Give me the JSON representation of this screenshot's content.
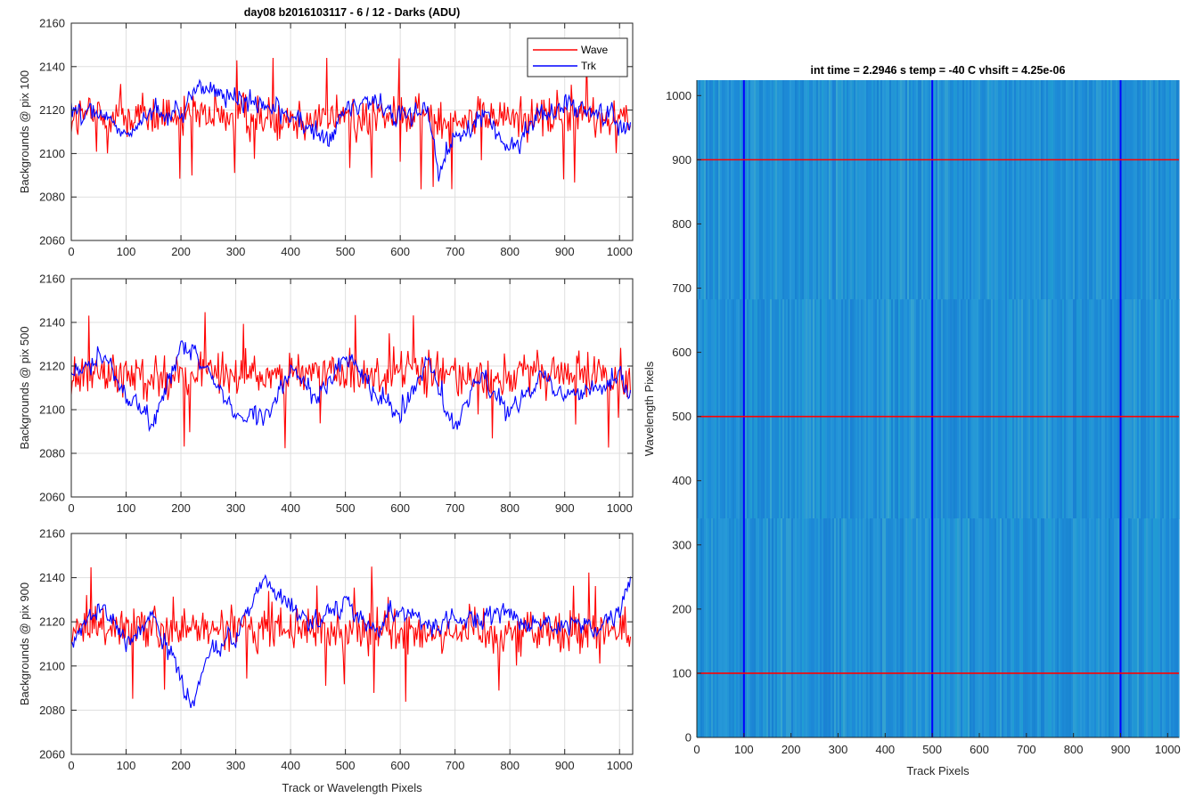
{
  "colors": {
    "wave": "#ff0000",
    "trk": "#0000ff",
    "grid": "#dfdfdf",
    "axis": "#262626",
    "image_base": "#1f8fd6"
  },
  "chart_data": [
    {
      "type": "line",
      "title": "day08 b2016103117 - 6 / 12 - Darks (ADU)",
      "xlabel": "",
      "ylabel": "Backgrounds @ pix 100",
      "xlim": [
        0,
        1024
      ],
      "ylim": [
        2060,
        2160
      ],
      "xticks": [
        0,
        100,
        200,
        300,
        400,
        500,
        600,
        700,
        800,
        900,
        1000
      ],
      "yticks": [
        2060,
        2080,
        2100,
        2120,
        2140,
        2160
      ],
      "grid": true,
      "legend": "top-right",
      "series": [
        {
          "name": "Wave",
          "color": "#ff0000",
          "mean": 2117,
          "range": [
            2078,
            2144
          ]
        },
        {
          "name": "Trk",
          "color": "#0000ff",
          "mean": 2117,
          "x": [
            0,
            50,
            100,
            150,
            200,
            230,
            300,
            400,
            470,
            500,
            550,
            600,
            650,
            670,
            700,
            750,
            800,
            850,
            900,
            950,
            1000,
            1020
          ],
          "values": [
            2122,
            2118,
            2108,
            2120,
            2118,
            2132,
            2125,
            2118,
            2105,
            2120,
            2125,
            2118,
            2120,
            2090,
            2108,
            2118,
            2100,
            2118,
            2122,
            2120,
            2115,
            2112
          ]
        }
      ]
    },
    {
      "type": "line",
      "title": "",
      "xlabel": "",
      "ylabel": "Backgrounds @ pix 500",
      "xlim": [
        0,
        1024
      ],
      "ylim": [
        2060,
        2160
      ],
      "xticks": [
        0,
        100,
        200,
        300,
        400,
        500,
        600,
        700,
        800,
        900,
        1000
      ],
      "yticks": [
        2060,
        2080,
        2100,
        2120,
        2140,
        2160
      ],
      "grid": true,
      "series": [
        {
          "name": "Wave",
          "color": "#ff0000",
          "mean": 2116,
          "range": [
            2078,
            2145
          ]
        },
        {
          "name": "Trk",
          "color": "#0000ff",
          "mean": 2115,
          "x": [
            0,
            50,
            100,
            150,
            200,
            250,
            300,
            350,
            400,
            450,
            500,
            550,
            600,
            650,
            700,
            750,
            800,
            850,
            900,
            950,
            1000,
            1020
          ],
          "values": [
            2115,
            2125,
            2108,
            2095,
            2128,
            2118,
            2098,
            2095,
            2118,
            2105,
            2125,
            2110,
            2100,
            2122,
            2090,
            2118,
            2098,
            2115,
            2110,
            2108,
            2118,
            2104
          ]
        }
      ]
    },
    {
      "type": "line",
      "title": "",
      "xlabel": "Track or Wavelength Pixels",
      "ylabel": "Backgrounds @ pix 900",
      "xlim": [
        0,
        1024
      ],
      "ylim": [
        2060,
        2160
      ],
      "xticks": [
        0,
        100,
        200,
        300,
        400,
        500,
        600,
        700,
        800,
        900,
        1000
      ],
      "yticks": [
        2060,
        2080,
        2100,
        2120,
        2140,
        2160
      ],
      "grid": true,
      "series": [
        {
          "name": "Wave",
          "color": "#ff0000",
          "mean": 2116,
          "range": [
            2075,
            2145
          ]
        },
        {
          "name": "Trk",
          "color": "#0000ff",
          "mean": 2118,
          "x": [
            0,
            50,
            100,
            150,
            200,
            220,
            250,
            300,
            350,
            400,
            450,
            500,
            550,
            600,
            650,
            700,
            750,
            800,
            850,
            900,
            950,
            1000,
            1020
          ],
          "values": [
            2112,
            2128,
            2110,
            2122,
            2095,
            2082,
            2108,
            2112,
            2140,
            2125,
            2122,
            2130,
            2115,
            2125,
            2118,
            2122,
            2120,
            2125,
            2118,
            2120,
            2115,
            2122,
            2140
          ]
        }
      ]
    },
    {
      "type": "heatmap",
      "title": "int time = 2.2946 s    temp = -40 C    vhsift = 4.25e-06",
      "xlabel": "Track Pixels",
      "ylabel": "Wavelength Pixels",
      "xlim": [
        0,
        1024
      ],
      "ylim": [
        0,
        1024
      ],
      "xticks": [
        0,
        100,
        200,
        300,
        400,
        500,
        600,
        700,
        800,
        900,
        1000
      ],
      "yticks": [
        0,
        100,
        200,
        300,
        400,
        500,
        600,
        700,
        800,
        900,
        1000
      ],
      "colormap": "parula",
      "vertical_lines": {
        "color": "#0000ff",
        "x": [
          100,
          500,
          900
        ]
      },
      "horizontal_lines": {
        "color": "#ff0000",
        "y": [
          100,
          500,
          900
        ]
      }
    }
  ]
}
